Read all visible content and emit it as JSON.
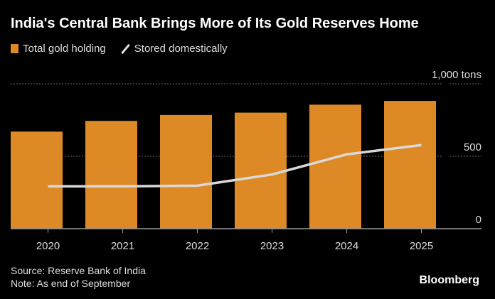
{
  "chart_data": {
    "type": "bar",
    "title": "India's Central Bank Brings More of Its Gold Reserves Home",
    "categories": [
      "2020",
      "2021",
      "2022",
      "2023",
      "2024",
      "2025"
    ],
    "series": [
      {
        "name": "Total gold holding",
        "type": "bar",
        "color": "#dd8a26",
        "values": [
          670,
          744,
          785,
          801,
          856,
          882
        ]
      },
      {
        "name": "Stored domestically",
        "type": "line",
        "color": "#d9d9d9",
        "values": [
          292,
          292,
          297,
          374,
          513,
          577
        ]
      }
    ],
    "yticks": [
      {
        "value": 0,
        "label": "0"
      },
      {
        "value": 500,
        "label": "500"
      },
      {
        "value": 1000,
        "label": "1,000 tons"
      }
    ],
    "ylim": [
      0,
      1000
    ],
    "grid": true,
    "legend": "top-left"
  },
  "footer": {
    "source": "Source: Reserve Bank of India",
    "note": "Note: As end of September",
    "brand": "Bloomberg"
  }
}
